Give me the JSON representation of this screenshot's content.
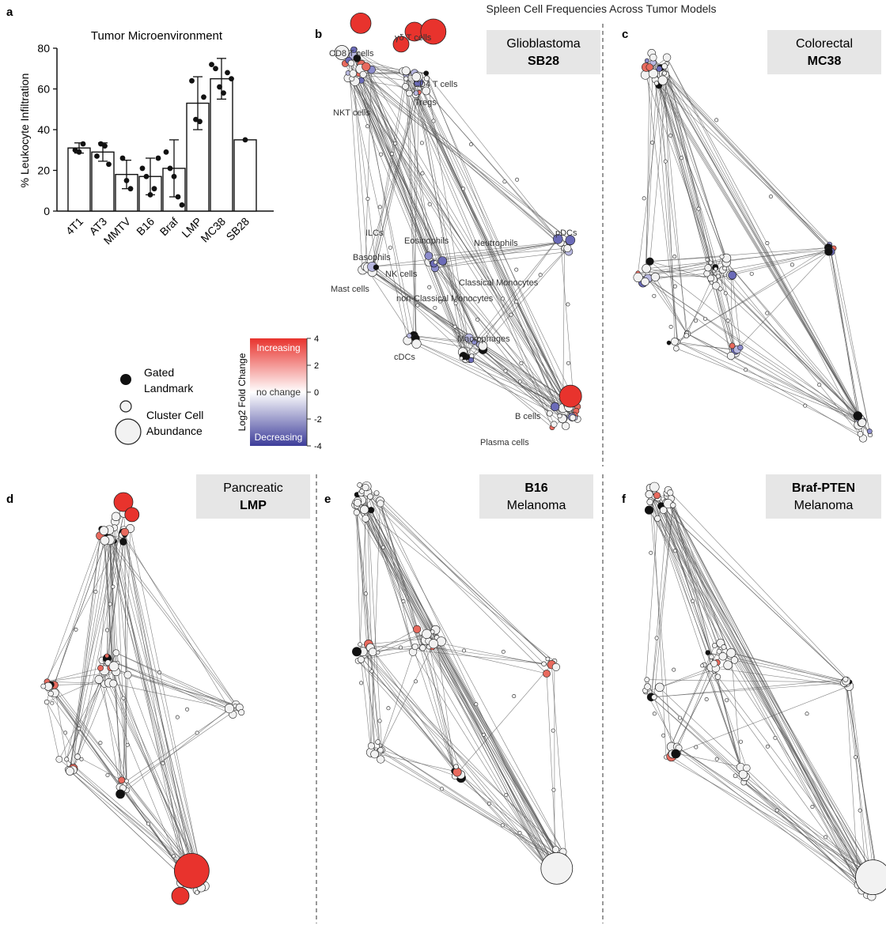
{
  "figure_title": "Spleen Cell Frequencies Across Tumor Models",
  "panel_letters": [
    "a",
    "b",
    "c",
    "d",
    "e",
    "f"
  ],
  "colors": {
    "increase": "#e8332d",
    "decrease": "#3d3d9a",
    "neutral": "#f2f2f2",
    "landmark": "#111111",
    "edge": "#555555",
    "label_box": "#e6e6e6"
  },
  "chart_data": [
    {
      "type": "bar",
      "title": "Tumor Microenvironment",
      "xlabel": "",
      "ylabel": "% Leukocyte Infiltration",
      "ylim": [
        0,
        80
      ],
      "yticks": [
        "0",
        "20",
        "40",
        "60",
        "80"
      ],
      "categories": [
        "4T1",
        "AT3",
        "MMTV",
        "B16",
        "Braf",
        "LMP",
        "MC38",
        "SB28"
      ],
      "values": [
        31,
        29,
        18,
        17,
        21,
        53,
        65,
        35
      ],
      "error": [
        2.5,
        4.5,
        7,
        9,
        14,
        13,
        10,
        0
      ],
      "points": [
        [
          30,
          29,
          33
        ],
        [
          27,
          33,
          32,
          23
        ],
        [
          26,
          15,
          11
        ],
        [
          21,
          17,
          8,
          11,
          26
        ],
        [
          29,
          21,
          17,
          7,
          3
        ],
        [
          64,
          45,
          44,
          56
        ],
        [
          72,
          70,
          61,
          58,
          68,
          65
        ],
        [
          35
        ]
      ]
    }
  ],
  "legend": {
    "colorbar_label": "Log2 Fold Change",
    "colorbar_ticks": [
      "4",
      "2",
      "0",
      "-2",
      "-4"
    ],
    "increasing": "Increasing",
    "no_change": "no change",
    "decreasing": "Decreasing",
    "landmark_label": "Gated\nLandmark",
    "cluster_label": "Cluster Cell\nAbundance"
  },
  "panels": [
    {
      "letter": "b",
      "tissue": "Glioblastoma",
      "model": "SB28",
      "model_bold": true
    },
    {
      "letter": "c",
      "tissue": "Colorectal",
      "model": "MC38",
      "model_bold": true
    },
    {
      "letter": "d",
      "tissue": "Pancreatic",
      "model": "LMP",
      "model_bold": true
    },
    {
      "letter": "e",
      "tissue": "Melanoma",
      "model": "B16",
      "model_bold": true
    },
    {
      "letter": "f",
      "tissue": "Melanoma",
      "model": "Braf-PTEN",
      "model_bold": true
    }
  ],
  "population_labels": [
    "γδ T cells",
    "CD8 T cells",
    "CD4 T cells",
    "Tregs",
    "NKT cells",
    "ILCs",
    "Eosinophils",
    "Neutrophils",
    "pDCs",
    "Basophils",
    "NK cells",
    "Classical Monocytes",
    "Mast cells",
    "non-Classical Monocytes",
    "Macrophages",
    "cDCs",
    "B cells",
    "Plasma cells"
  ]
}
